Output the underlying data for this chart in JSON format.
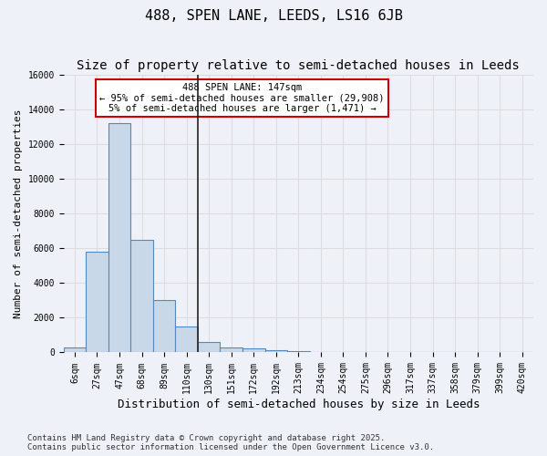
{
  "title": "488, SPEN LANE, LEEDS, LS16 6JB",
  "subtitle": "Size of property relative to semi-detached houses in Leeds",
  "xlabel": "Distribution of semi-detached houses by size in Leeds",
  "ylabel": "Number of semi-detached properties",
  "bin_labels": [
    "6sqm",
    "27sqm",
    "47sqm",
    "68sqm",
    "89sqm",
    "110sqm",
    "130sqm",
    "151sqm",
    "172sqm",
    "192sqm",
    "213sqm",
    "234sqm",
    "254sqm",
    "275sqm",
    "296sqm",
    "317sqm",
    "337sqm",
    "358sqm",
    "379sqm",
    "399sqm",
    "420sqm"
  ],
  "bar_values": [
    300,
    5800,
    13200,
    6500,
    3000,
    1500,
    600,
    300,
    250,
    150,
    100,
    0,
    0,
    0,
    0,
    0,
    0,
    0,
    0,
    0,
    0
  ],
  "bar_color": "#c8d8e8",
  "bar_edge_color": "#5588bb",
  "vline_x_index": 5.5,
  "vline_color": "#222222",
  "annotation_text": "488 SPEN LANE: 147sqm\n← 95% of semi-detached houses are smaller (29,908)\n5% of semi-detached houses are larger (1,471) →",
  "annotation_box_color": "#ffffff",
  "annotation_box_edge": "#cc0000",
  "ylim": [
    0,
    16000
  ],
  "yticks": [
    0,
    2000,
    4000,
    6000,
    8000,
    10000,
    12000,
    14000,
    16000
  ],
  "grid_color": "#dddddd",
  "background_color": "#eef2f8",
  "footer_text": "Contains HM Land Registry data © Crown copyright and database right 2025.\nContains public sector information licensed under the Open Government Licence v3.0.",
  "title_fontsize": 11,
  "subtitle_fontsize": 10,
  "xlabel_fontsize": 9,
  "ylabel_fontsize": 8,
  "tick_fontsize": 7,
  "footer_fontsize": 6.5
}
